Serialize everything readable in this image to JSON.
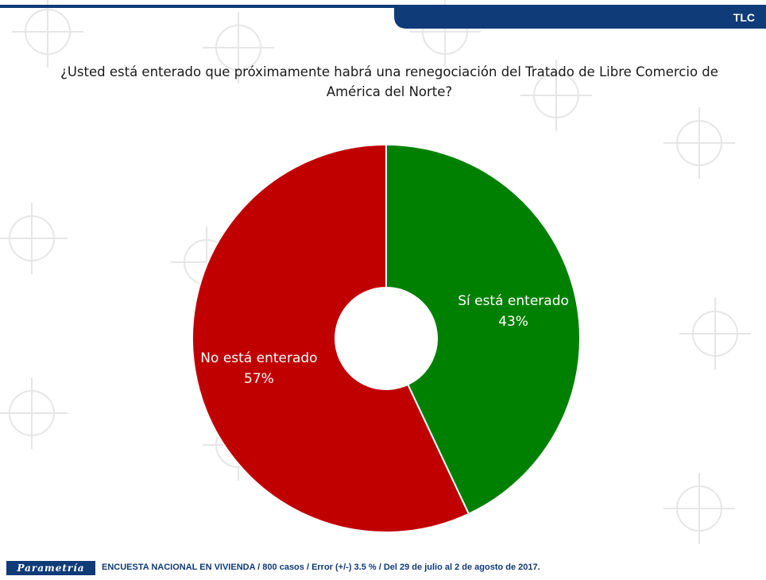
{
  "header": {
    "tag": "TLC"
  },
  "colors": {
    "header_bar": "#0f3b78",
    "no": "#c00000",
    "yes": "#008000"
  },
  "watermark": {
    "word": "Parametría"
  },
  "chart_data": {
    "type": "pie",
    "title": "¿Usted está enterado que próximamente habrá una renegociación del Tratado de Libre Comercio de América del Norte?",
    "slices": [
      {
        "label": "Sí está enterado",
        "value": 43,
        "value_label": "43%",
        "color": "#008000"
      },
      {
        "label": "No está enterado",
        "value": 57,
        "value_label": "57%",
        "color": "#c00000"
      }
    ]
  },
  "footer": {
    "brand": "Parametría",
    "note": "ENCUESTA  NACIONAL EN VIVIENDA  / 800 casos / Error (+/-)  3.5 % / Del 29 de julio al 2 de agosto de 2017."
  }
}
